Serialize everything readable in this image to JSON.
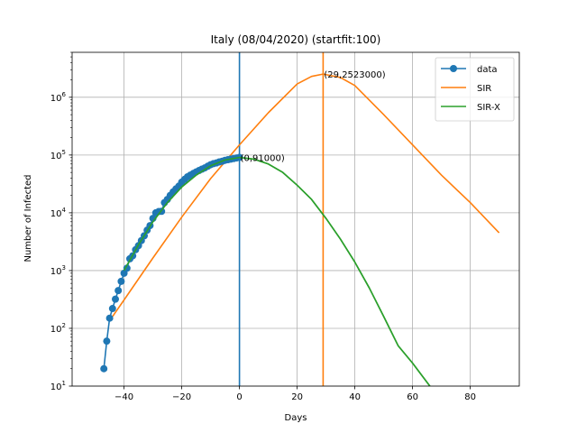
{
  "chart_data": {
    "type": "line",
    "title": "Italy (08/04/2020) (startfit:100)",
    "xlabel": "Days",
    "ylabel": "Number of Infected",
    "xlim": [
      -58,
      97
    ],
    "ylim": [
      10,
      6000000
    ],
    "yscale": "log",
    "grid": true,
    "legend_position": "top-right",
    "xticks": [
      -40,
      -20,
      0,
      20,
      40,
      60,
      80
    ],
    "xtick_labels": [
      "−40",
      "−20",
      "0",
      "20",
      "40",
      "60",
      "80"
    ],
    "yticks": [
      10,
      100,
      1000,
      10000,
      100000,
      1000000
    ],
    "ytick_labels": [
      {
        "base": "10",
        "exp": "1"
      },
      {
        "base": "10",
        "exp": "2"
      },
      {
        "base": "10",
        "exp": "3"
      },
      {
        "base": "10",
        "exp": "4"
      },
      {
        "base": "10",
        "exp": "5"
      },
      {
        "base": "10",
        "exp": "6"
      }
    ],
    "series": [
      {
        "name": "data",
        "color": "#1f77b4",
        "marker": "circle",
        "x": [
          -47,
          -46,
          -45,
          -44,
          -43,
          -42,
          -41,
          -40,
          -39,
          -38,
          -37,
          -36,
          -35,
          -34,
          -33,
          -32,
          -31,
          -30,
          -29,
          -28,
          -27,
          -26,
          -25,
          -24,
          -23,
          -22,
          -21,
          -20,
          -19,
          -18,
          -17,
          -16,
          -15,
          -14,
          -13,
          -12,
          -11,
          -10,
          -9,
          -8,
          -7,
          -6,
          -5,
          -4,
          -3,
          -2,
          -1,
          0
        ],
        "y": [
          20,
          60,
          150,
          220,
          320,
          450,
          650,
          900,
          1100,
          1600,
          1800,
          2300,
          2700,
          3300,
          4000,
          5000,
          6000,
          8000,
          10000,
          10500,
          10600,
          15000,
          17000,
          20000,
          23000,
          26000,
          29000,
          34000,
          38000,
          42000,
          45000,
          48000,
          51000,
          54000,
          57000,
          60000,
          64000,
          68000,
          71000,
          73000,
          76000,
          78000,
          81000,
          83000,
          85000,
          87000,
          89000,
          91000
        ]
      },
      {
        "name": "SIR",
        "color": "#ff7f0e",
        "peak_x": 29,
        "peak_y": 2523000,
        "x": [
          -44,
          -40,
          -30,
          -20,
          -10,
          0,
          10,
          20,
          25,
          29,
          35,
          40,
          50,
          60,
          70,
          80,
          90
        ],
        "y": [
          160,
          310,
          1650,
          8400,
          39000,
          150000,
          540000,
          1700000,
          2300000,
          2523000,
          2200000,
          1600000,
          500000,
          150000,
          45000,
          15000,
          4500
        ]
      },
      {
        "name": "SIR-X",
        "color": "#2ca02c",
        "x": [
          -40,
          -35,
          -30,
          -25,
          -20,
          -15,
          -10,
          -5,
          0,
          5,
          10,
          15,
          20,
          25,
          30,
          35,
          40,
          45,
          50,
          55,
          60,
          66
        ],
        "y": [
          1000,
          2800,
          7000,
          15000,
          28000,
          45000,
          65000,
          82000,
          91000,
          85000,
          70000,
          50000,
          30000,
          17000,
          8000,
          3500,
          1400,
          500,
          160,
          50,
          25,
          10
        ]
      }
    ],
    "vlines": [
      {
        "x": 0,
        "color": "#1f77b4"
      },
      {
        "x": 29,
        "color": "#ff7f0e"
      }
    ],
    "annotations": [
      {
        "text": "(0,91000)",
        "x": 0,
        "y": 91000
      },
      {
        "text": "(29,2523000)",
        "x": 29,
        "y": 2523000
      }
    ]
  }
}
